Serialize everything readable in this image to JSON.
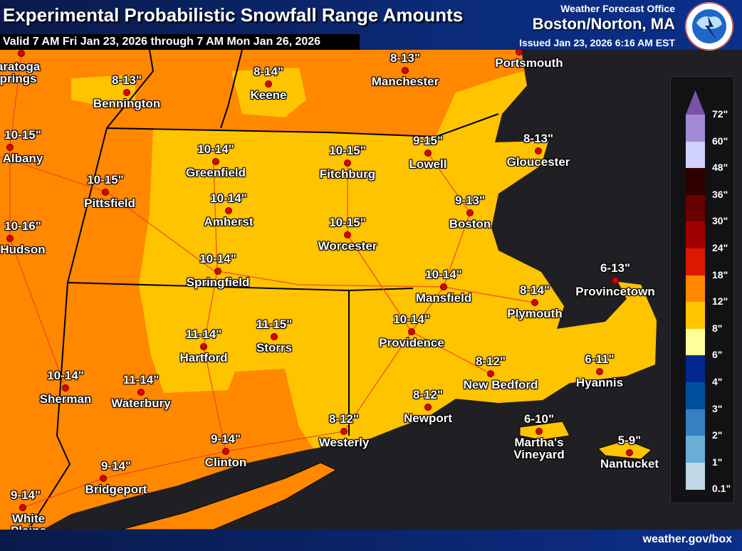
{
  "header": {
    "title": "Experimental Probabilistic Snowfall Range Amounts",
    "valid": "Valid 7 AM Fri Jan 23, 2026 through 7 AM Mon Jan 26, 2026",
    "wfo_label": "Weather Forecast Office",
    "office": "Boston/Norton, MA",
    "issued": "Issued Jan 23, 2026 6:16 AM EST",
    "logo_text": "NATIONAL WEATHER SERVICE"
  },
  "colors": {
    "ocean": "#202024",
    "orange_12_18": "#ff8800",
    "yellow_8_12": "#ffc400",
    "borders": "#000000",
    "roads": "#ee4422",
    "city_dot": "#e00000"
  },
  "cities": [
    {
      "name": "Saratoga Springs",
      "amount": ""
    },
    {
      "name": "Bennington",
      "amount": "8-13\""
    },
    {
      "name": "Keene",
      "amount": "8-14\""
    },
    {
      "name": "Manchester",
      "amount": "8-13\""
    },
    {
      "name": "Portsmouth",
      "amount": ""
    },
    {
      "name": "Albany",
      "amount": "10-15\""
    },
    {
      "name": "Pittsfield",
      "amount": "10-15\""
    },
    {
      "name": "Greenfield",
      "amount": "10-14\""
    },
    {
      "name": "Fitchburg",
      "amount": "10-15\""
    },
    {
      "name": "Lowell",
      "amount": "9-15\""
    },
    {
      "name": "Gloucester",
      "amount": "8-13\""
    },
    {
      "name": "Hudson",
      "amount": "10-16\""
    },
    {
      "name": "Amherst",
      "amount": "10-14\""
    },
    {
      "name": "Boston",
      "amount": "9-13\""
    },
    {
      "name": "Worcester",
      "amount": "10-15\""
    },
    {
      "name": "Springfield",
      "amount": "10-14\""
    },
    {
      "name": "Mansfield",
      "amount": "10-14\""
    },
    {
      "name": "Plymouth",
      "amount": "8-14\""
    },
    {
      "name": "Provincetown",
      "amount": "6-13\""
    },
    {
      "name": "Hartford",
      "amount": "11-14\""
    },
    {
      "name": "Storrs",
      "amount": "11-15\""
    },
    {
      "name": "Providence",
      "amount": "10-14\""
    },
    {
      "name": "Sherman",
      "amount": "10-14\""
    },
    {
      "name": "Waterbury",
      "amount": "11-14\""
    },
    {
      "name": "New Bedford",
      "amount": "8-12\""
    },
    {
      "name": "Hyannis",
      "amount": "6-11\""
    },
    {
      "name": "Newport",
      "amount": "8-12\""
    },
    {
      "name": "Westerly",
      "amount": "8-12\""
    },
    {
      "name": "Martha's Vineyard",
      "amount": "6-10\""
    },
    {
      "name": "Clinton",
      "amount": "9-14\""
    },
    {
      "name": "Bridgeport",
      "amount": "9-14\""
    },
    {
      "name": "Nantucket",
      "amount": "5-9\""
    },
    {
      "name": "White Plains",
      "amount": "9-14\""
    }
  ],
  "legend": {
    "labels": [
      "72\"",
      "60\"",
      "48\"",
      "36\"",
      "30\"",
      "24\"",
      "18\"",
      "12\"",
      "8\"",
      "6\"",
      "4\"",
      "3\"",
      "2\"",
      "1\"",
      "0.1\""
    ],
    "colors": [
      "#7b52a8",
      "#a28ad6",
      "#d0d0ff",
      "#2e0000",
      "#6a0000",
      "#a00000",
      "#de1800",
      "#ff8800",
      "#ffc400",
      "#ffff99",
      "#002890",
      "#0050a0",
      "#3580c0",
      "#6aaed8",
      "#c0d8e6"
    ]
  },
  "footer": {
    "url": "weather.gov/box"
  }
}
